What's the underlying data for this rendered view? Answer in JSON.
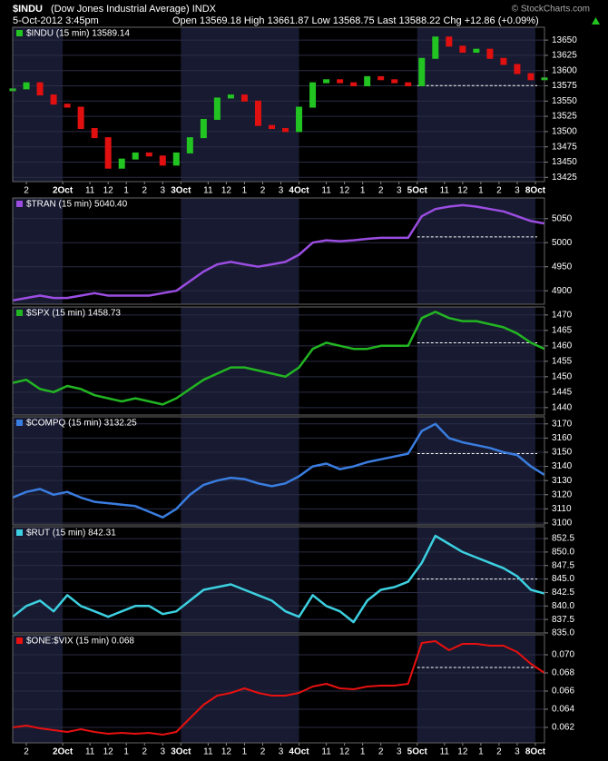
{
  "header": {
    "symbol": "$INDU",
    "name": "(Dow Jones Industrial Average) INDX",
    "date": "5-Oct-2012 3:45pm",
    "quote": "Open 13569.18 High 13661.87 Low 13568.75 Last 13588.22 Chg +12.86 (+0.09%)",
    "copyright": "© StockCharts.com"
  },
  "chart_data": [
    {
      "type": "candlestick",
      "label": "$INDU (15 min) 13589.14",
      "up_color": "#22c422",
      "down_color": "#e01010",
      "grid": true,
      "x": [
        0,
        3,
        6,
        9,
        12,
        15,
        18,
        21,
        24,
        27,
        30,
        33,
        36,
        39,
        42,
        45,
        48,
        51,
        54,
        57,
        60,
        63,
        66,
        69,
        72,
        75,
        78,
        81,
        84,
        87,
        90,
        93,
        96,
        99,
        102,
        105,
        108,
        111,
        114,
        117
      ],
      "values": [
        13570,
        13580,
        13560,
        13545,
        13540,
        13505,
        13490,
        13440,
        13455,
        13465,
        13460,
        13445,
        13465,
        13490,
        13520,
        13555,
        13560,
        13550,
        13510,
        13505,
        13500,
        13540,
        13580,
        13585,
        13580,
        13575,
        13590,
        13585,
        13580,
        13575,
        13620,
        13655,
        13640,
        13630,
        13635,
        13620,
        13610,
        13595,
        13585,
        13588
      ],
      "reference_line": 13575.36,
      "xlim": [
        0,
        117
      ],
      "ylim": [
        13418,
        13671
      ],
      "yticks": [
        13425,
        13450,
        13475,
        13500,
        13525,
        13550,
        13575,
        13600,
        13625,
        13650
      ],
      "xticks": [
        {
          "value": 3,
          "label": "2"
        },
        {
          "value": 11,
          "label": "2Oct"
        },
        {
          "value": 17,
          "label": "11"
        },
        {
          "value": 21,
          "label": "12"
        },
        {
          "value": 25,
          "label": "1"
        },
        {
          "value": 29,
          "label": "2"
        },
        {
          "value": 33,
          "label": "3"
        },
        {
          "value": 37,
          "label": "3Oct"
        },
        {
          "value": 43,
          "label": "11"
        },
        {
          "value": 47,
          "label": "12"
        },
        {
          "value": 51,
          "label": "1"
        },
        {
          "value": 55,
          "label": "2"
        },
        {
          "value": 59,
          "label": "3"
        },
        {
          "value": 63,
          "label": "4Oct"
        },
        {
          "value": 69,
          "label": "11"
        },
        {
          "value": 73,
          "label": "12"
        },
        {
          "value": 77,
          "label": "1"
        },
        {
          "value": 81,
          "label": "2"
        },
        {
          "value": 85,
          "label": "3"
        },
        {
          "value": 89,
          "label": "5Oct"
        },
        {
          "value": 95,
          "label": "11"
        },
        {
          "value": 99,
          "label": "12"
        },
        {
          "value": 103,
          "label": "1"
        },
        {
          "value": 107,
          "label": "2"
        },
        {
          "value": 111,
          "label": "3"
        },
        {
          "value": 115,
          "label": "8Oct"
        }
      ]
    },
    {
      "type": "line",
      "label": "$TRAN (15 min) 5040.40",
      "color": "#9a4de0",
      "grid": true,
      "x": [
        0,
        3,
        6,
        9,
        12,
        15,
        18,
        21,
        24,
        27,
        30,
        33,
        36,
        39,
        42,
        45,
        48,
        51,
        54,
        57,
        60,
        63,
        66,
        69,
        72,
        75,
        78,
        81,
        84,
        87,
        90,
        93,
        96,
        99,
        102,
        105,
        108,
        111,
        114,
        117
      ],
      "values": [
        4880,
        4885,
        4890,
        4885,
        4885,
        4890,
        4895,
        4890,
        4890,
        4890,
        4890,
        4895,
        4900,
        4920,
        4940,
        4955,
        4960,
        4955,
        4950,
        4955,
        4960,
        4975,
        5000,
        5005,
        5003,
        5005,
        5008,
        5010,
        5010,
        5010,
        5055,
        5070,
        5075,
        5078,
        5075,
        5070,
        5065,
        5055,
        5045,
        5040
      ],
      "reference_line": 5012,
      "xlim": [
        0,
        117
      ],
      "ylim": [
        4872,
        5093
      ],
      "yticks": [
        4900,
        4950,
        5000,
        5050
      ]
    },
    {
      "type": "line",
      "label": "$SPX (15 min) 1458.73",
      "color": "#22b522",
      "grid": true,
      "x": [
        0,
        3,
        6,
        9,
        12,
        15,
        18,
        21,
        24,
        27,
        30,
        33,
        36,
        39,
        42,
        45,
        48,
        51,
        54,
        57,
        60,
        63,
        66,
        69,
        72,
        75,
        78,
        81,
        84,
        87,
        90,
        93,
        96,
        99,
        102,
        105,
        108,
        111,
        114,
        117
      ],
      "values": [
        1448,
        1449,
        1446,
        1445,
        1447,
        1446,
        1444,
        1443,
        1442,
        1443,
        1442,
        1441,
        1443,
        1446,
        1449,
        1451,
        1453,
        1453,
        1452,
        1451,
        1450,
        1453,
        1459,
        1461,
        1460,
        1459,
        1459,
        1460,
        1460,
        1460,
        1469,
        1471,
        1469,
        1468,
        1468,
        1467,
        1466,
        1464,
        1461,
        1459
      ],
      "reference_line": 1461,
      "xlim": [
        0,
        117
      ],
      "ylim": [
        1437.6,
        1472.6
      ],
      "yticks": [
        1440,
        1445,
        1450,
        1455,
        1460,
        1465,
        1470
      ]
    },
    {
      "type": "line",
      "label": "$COMPQ (15 min) 3132.25",
      "color": "#3a7de0",
      "grid": true,
      "x": [
        0,
        3,
        6,
        9,
        12,
        15,
        18,
        21,
        24,
        27,
        30,
        33,
        36,
        39,
        42,
        45,
        48,
        51,
        54,
        57,
        60,
        63,
        66,
        69,
        72,
        75,
        78,
        81,
        84,
        87,
        90,
        93,
        96,
        99,
        102,
        105,
        108,
        111,
        114,
        117
      ],
      "values": [
        3118,
        3122,
        3124,
        3120,
        3122,
        3118,
        3115,
        3114,
        3113,
        3112,
        3108,
        3104,
        3110,
        3120,
        3127,
        3130,
        3132,
        3131,
        3128,
        3126,
        3128,
        3133,
        3140,
        3142,
        3138,
        3140,
        3143,
        3145,
        3147,
        3149,
        3165,
        3170,
        3160,
        3157,
        3155,
        3153,
        3150,
        3148,
        3140,
        3134
      ],
      "reference_line": 3149,
      "xlim": [
        0,
        117
      ],
      "ylim": [
        3098.7,
        3175
      ],
      "yticks": [
        3100,
        3110,
        3120,
        3130,
        3140,
        3150,
        3160,
        3170
      ]
    },
    {
      "type": "line",
      "label": "$RUT (15 min) 842.31",
      "color": "#3cd0e0",
      "grid": true,
      "x": [
        0,
        3,
        6,
        9,
        12,
        15,
        18,
        21,
        24,
        27,
        30,
        33,
        36,
        39,
        42,
        45,
        48,
        51,
        54,
        57,
        60,
        63,
        66,
        69,
        72,
        75,
        78,
        81,
        84,
        87,
        90,
        93,
        96,
        99,
        102,
        105,
        108,
        111,
        114,
        117
      ],
      "values": [
        838,
        840,
        841,
        839,
        842,
        840,
        839,
        838,
        839,
        840,
        840,
        838.5,
        839,
        841,
        843,
        843.5,
        844,
        843,
        842,
        841,
        839,
        838,
        842,
        840,
        839,
        837,
        841,
        843,
        843.5,
        844.5,
        848,
        853,
        851.5,
        850,
        849,
        848,
        847,
        845.5,
        843,
        842.3
      ],
      "reference_line": 845,
      "xlim": [
        0,
        117
      ],
      "ylim": [
        835,
        854.7
      ],
      "yticks": [
        {
          "value": 835,
          "label": "835.0"
        },
        837.5,
        {
          "value": 840,
          "label": "840.0"
        },
        842.5,
        {
          "value": 845,
          "label": "845.0"
        },
        847.5,
        {
          "value": 850,
          "label": "850.0"
        },
        852.5
      ]
    },
    {
      "type": "line",
      "label": "$ONE:$VIX (15 min) 0.068",
      "color": "#e81010",
      "grid": true,
      "x": [
        0,
        3,
        6,
        9,
        12,
        15,
        18,
        21,
        24,
        27,
        30,
        33,
        36,
        39,
        42,
        45,
        48,
        51,
        54,
        57,
        60,
        63,
        66,
        69,
        72,
        75,
        78,
        81,
        84,
        87,
        90,
        93,
        96,
        99,
        102,
        105,
        108,
        111,
        114,
        117
      ],
      "values": [
        0.062,
        0.0622,
        0.0619,
        0.0617,
        0.0615,
        0.0618,
        0.0615,
        0.0613,
        0.0614,
        0.0613,
        0.0614,
        0.0612,
        0.0615,
        0.063,
        0.0645,
        0.0655,
        0.0658,
        0.0663,
        0.0658,
        0.0655,
        0.0655,
        0.0658,
        0.0665,
        0.0668,
        0.0663,
        0.0662,
        0.0665,
        0.0666,
        0.0666,
        0.0668,
        0.0713,
        0.0715,
        0.0705,
        0.0712,
        0.0712,
        0.071,
        0.071,
        0.0703,
        0.069,
        0.068
      ],
      "reference_line": 0.0686,
      "xlim": [
        0,
        117
      ],
      "ylim": [
        0.0603,
        0.0722
      ],
      "yticks": [
        0.062,
        0.064,
        0.066,
        0.068,
        {
          "value": 0.07,
          "label": "0.070"
        }
      ],
      "xticks": [
        {
          "value": 3,
          "label": "2"
        },
        {
          "value": 11,
          "label": "2Oct"
        },
        {
          "value": 17,
          "label": "11"
        },
        {
          "value": 21,
          "label": "12"
        },
        {
          "value": 25,
          "label": "1"
        },
        {
          "value": 29,
          "label": "2"
        },
        {
          "value": 33,
          "label": "3"
        },
        {
          "value": 37,
          "label": "3Oct"
        },
        {
          "value": 43,
          "label": "11"
        },
        {
          "value": 47,
          "label": "12"
        },
        {
          "value": 51,
          "label": "1"
        },
        {
          "value": 55,
          "label": "2"
        },
        {
          "value": 59,
          "label": "3"
        },
        {
          "value": 63,
          "label": "4Oct"
        },
        {
          "value": 69,
          "label": "11"
        },
        {
          "value": 73,
          "label": "12"
        },
        {
          "value": 77,
          "label": "1"
        },
        {
          "value": 81,
          "label": "2"
        },
        {
          "value": 85,
          "label": "3"
        },
        {
          "value": 89,
          "label": "5Oct"
        },
        {
          "value": 95,
          "label": "11"
        },
        {
          "value": 99,
          "label": "12"
        },
        {
          "value": 103,
          "label": "1"
        },
        {
          "value": 107,
          "label": "2"
        },
        {
          "value": 111,
          "label": "3"
        },
        {
          "value": 115,
          "label": "8Oct"
        }
      ]
    }
  ]
}
